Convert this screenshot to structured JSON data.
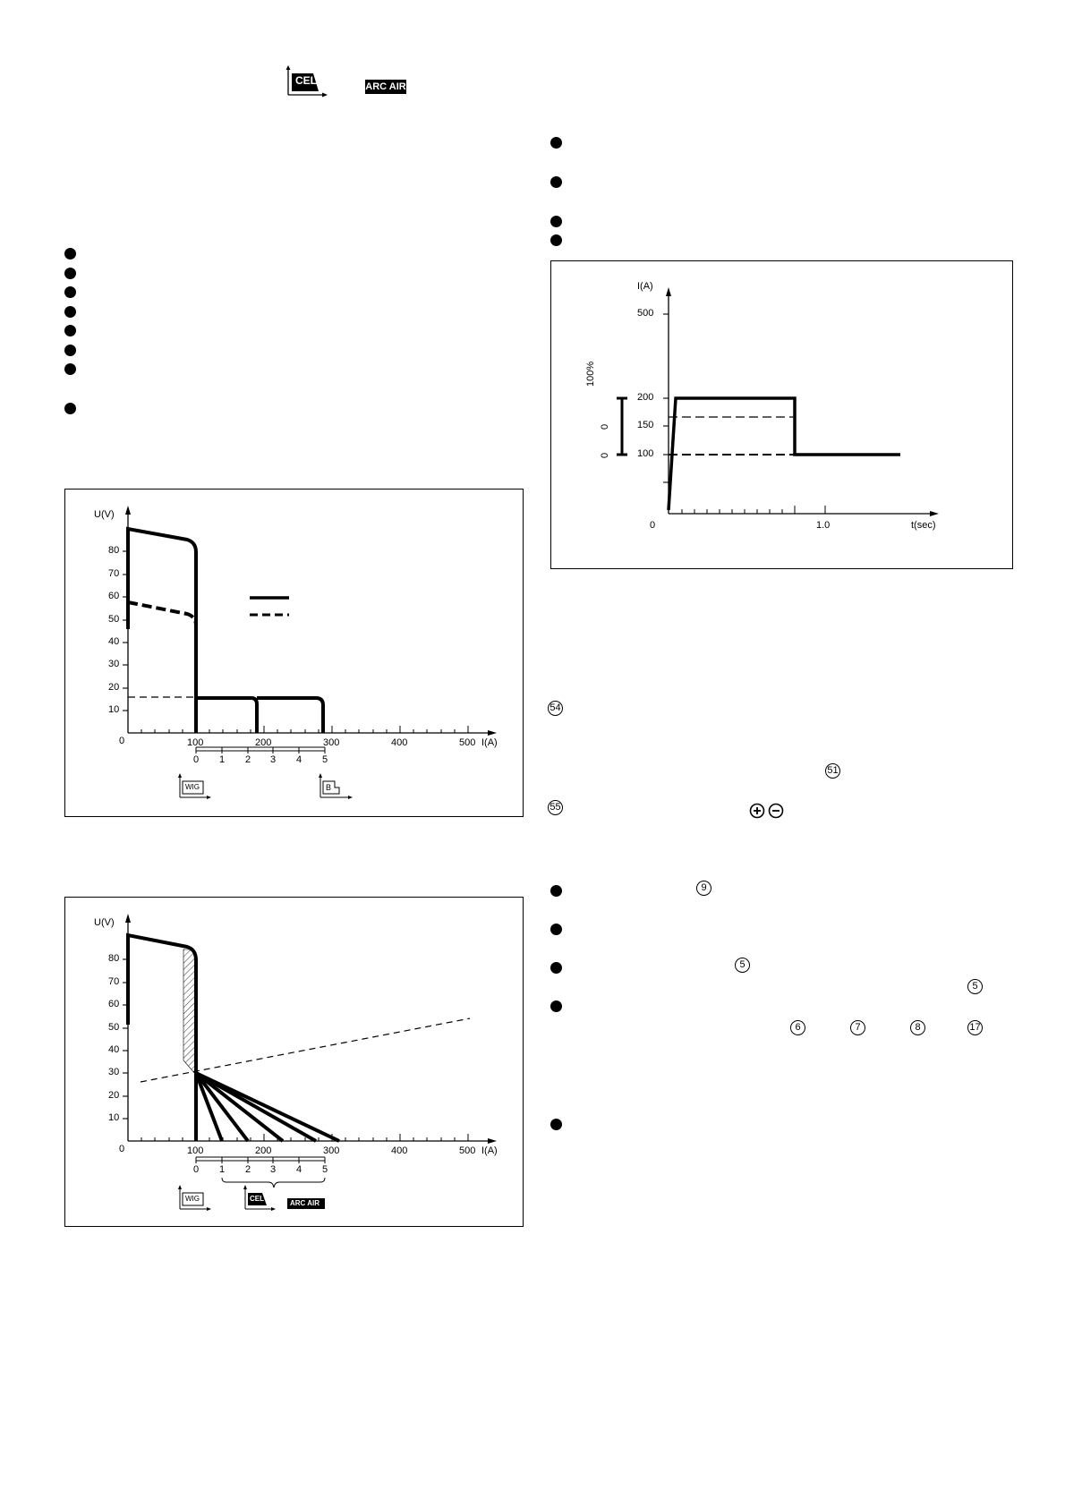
{
  "header": {
    "cel_icon": "CEL",
    "arcair_icon": "ARC AIR"
  },
  "fig1": {
    "y_axis_label": "U(V)",
    "x_axis_label": "I(A)",
    "origin": "0",
    "y_ticks": [
      "80",
      "70",
      "60",
      "50",
      "40",
      "30",
      "20",
      "10"
    ],
    "x_ticks": [
      "100",
      "200",
      "300",
      "400",
      "500"
    ],
    "scale_ticks": [
      "0",
      "1",
      "2",
      "3",
      "4",
      "5"
    ],
    "icon_left": "WIG",
    "icon_right": "B"
  },
  "fig2": {
    "y_axis_label": "U(V)",
    "x_axis_label": "I(A)",
    "origin": "0",
    "y_ticks": [
      "80",
      "70",
      "60",
      "50",
      "40",
      "30",
      "20",
      "10"
    ],
    "x_ticks": [
      "100",
      "200",
      "300",
      "400",
      "500"
    ],
    "scale_ticks": [
      "0",
      "1",
      "2",
      "3",
      "4",
      "5"
    ],
    "icon_left": "WIG",
    "icon_cel": "CEL",
    "icon_arcair": "ARC AIR"
  },
  "fig3": {
    "y_axis_label": "I(A)",
    "x_axis_label": "t(sec)",
    "origin": "0",
    "y_ticks": [
      "500",
      "200",
      "150",
      "100"
    ],
    "x_ticks": [
      "1.0"
    ],
    "range_labels": [
      "100%",
      "0",
      "0"
    ]
  },
  "markers": {
    "m54": "54",
    "m51": "51",
    "m55": "55",
    "m9": "9",
    "m5a": "5",
    "m5b": "5",
    "m6": "6",
    "m7": "7",
    "m8": "8",
    "m17": "17"
  },
  "colors": {
    "ink": "#000000",
    "paper": "#ffffff"
  }
}
